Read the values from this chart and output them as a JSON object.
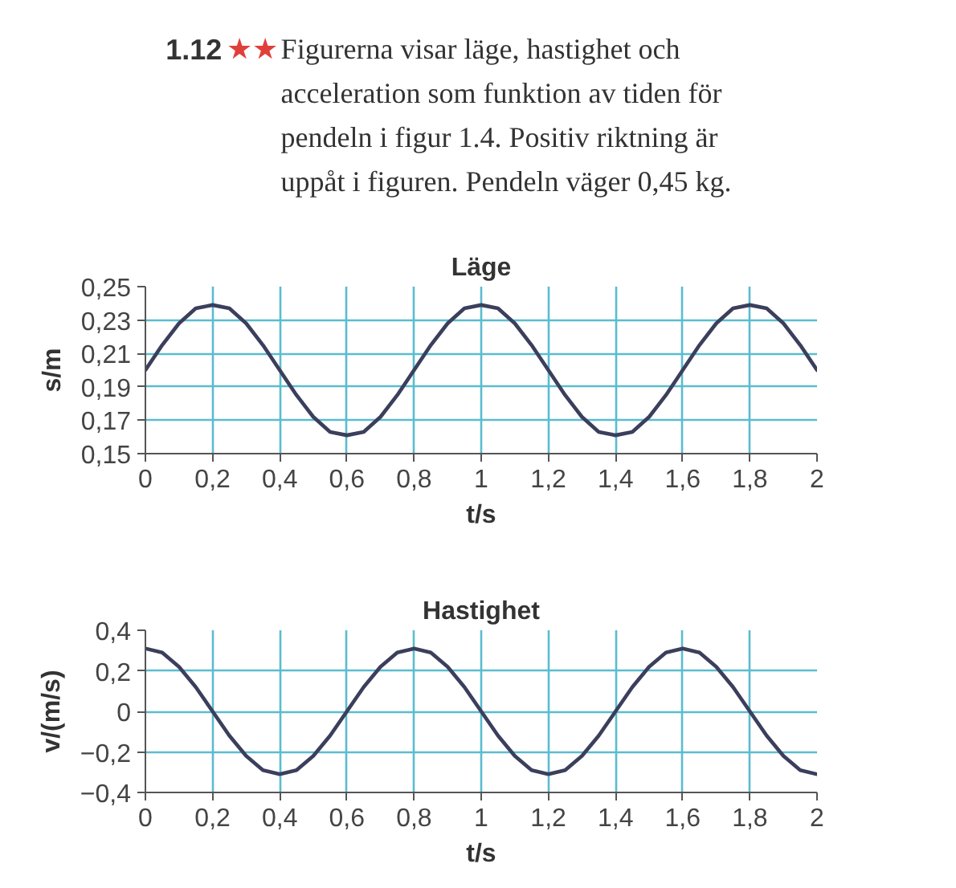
{
  "chart_data": [
    {
      "type": "other",
      "title": "1.12",
      "annotations": [
        "★★",
        "Figurerna visar läge, hastighet och acceleration som funktion av tiden för pendeln i figur 1.4. Positiv riktning är uppåt i figuren. Pendeln väger 0,45 kg."
      ]
    },
    {
      "type": "line",
      "title": "Läge",
      "xlabel": "t/s",
      "ylabel": "s/m",
      "color": "#3b3f5c",
      "grid": true,
      "x": [
        0,
        0.05,
        0.1,
        0.15,
        0.2,
        0.25,
        0.3,
        0.35,
        0.4,
        0.45,
        0.5,
        0.55,
        0.6,
        0.65,
        0.7,
        0.75,
        0.8,
        0.85,
        0.9,
        0.95,
        1.0,
        1.05,
        1.1,
        1.15,
        1.2,
        1.25,
        1.3,
        1.35,
        1.4,
        1.45,
        1.5,
        1.55,
        1.6,
        1.65,
        1.7,
        1.75,
        1.8,
        1.85,
        1.9,
        1.95,
        2.0
      ],
      "values": [
        0.2,
        0.215,
        0.228,
        0.237,
        0.239,
        0.237,
        0.228,
        0.215,
        0.2,
        0.185,
        0.172,
        0.163,
        0.161,
        0.163,
        0.172,
        0.185,
        0.2,
        0.215,
        0.228,
        0.237,
        0.239,
        0.237,
        0.228,
        0.215,
        0.2,
        0.185,
        0.172,
        0.163,
        0.161,
        0.163,
        0.172,
        0.185,
        0.2,
        0.215,
        0.228,
        0.237,
        0.239,
        0.237,
        0.228,
        0.215,
        0.2
      ],
      "xlim": [
        0,
        2
      ],
      "ylim": [
        0.15,
        0.25
      ],
      "xticks": [
        0,
        {
          "value": 0.2,
          "label": "0,2"
        },
        {
          "value": 0.4,
          "label": "0,4"
        },
        {
          "value": 0.6,
          "label": "0,6"
        },
        {
          "value": 0.8,
          "label": "0,8"
        },
        1,
        {
          "value": 1.2,
          "label": "1,2"
        },
        {
          "value": 1.4,
          "label": "1,4"
        },
        {
          "value": 1.6,
          "label": "1,6"
        },
        {
          "value": 1.8,
          "label": "1,8"
        },
        2
      ],
      "yticks": [
        {
          "value": 0.15,
          "label": "0,15"
        },
        {
          "value": 0.17,
          "label": "0,17"
        },
        {
          "value": 0.19,
          "label": "0,19"
        },
        {
          "value": 0.21,
          "label": "0,21"
        },
        {
          "value": 0.23,
          "label": "0,23"
        },
        {
          "value": 0.25,
          "label": "0,25"
        }
      ]
    },
    {
      "type": "line",
      "title": "Hastighet",
      "xlabel": "t/s",
      "ylabel": "v/(m/s)",
      "color": "#3b3f5c",
      "grid": true,
      "x": [
        0,
        0.05,
        0.1,
        0.15,
        0.2,
        0.25,
        0.3,
        0.35,
        0.4,
        0.45,
        0.5,
        0.55,
        0.6,
        0.65,
        0.7,
        0.75,
        0.8,
        0.85,
        0.9,
        0.95,
        1.0,
        1.05,
        1.1,
        1.15,
        1.2,
        1.25,
        1.3,
        1.35,
        1.4,
        1.45,
        1.5,
        1.55,
        1.6,
        1.65,
        1.7,
        1.75,
        1.8,
        1.85,
        1.9,
        1.95,
        2.0
      ],
      "values": [
        0.31,
        0.29,
        0.22,
        0.12,
        0.0,
        -0.12,
        -0.22,
        -0.29,
        -0.31,
        -0.29,
        -0.22,
        -0.12,
        0.0,
        0.12,
        0.22,
        0.29,
        0.31,
        0.29,
        0.22,
        0.12,
        0.0,
        -0.12,
        -0.22,
        -0.29,
        -0.31,
        -0.29,
        -0.22,
        -0.12,
        0.0,
        0.12,
        0.22,
        0.29,
        0.31,
        0.29,
        0.22,
        0.12,
        0.0,
        -0.12,
        -0.22,
        -0.29,
        -0.31
      ],
      "xlim": [
        0,
        2
      ],
      "ylim": [
        -0.4,
        0.4
      ],
      "xticks": [
        0,
        {
          "value": 0.2,
          "label": "0,2"
        },
        {
          "value": 0.4,
          "label": "0,4"
        },
        {
          "value": 0.6,
          "label": "0,6"
        },
        {
          "value": 0.8,
          "label": "0,8"
        },
        1,
        {
          "value": 1.2,
          "label": "1,2"
        },
        {
          "value": 1.4,
          "label": "1,4"
        },
        {
          "value": 1.6,
          "label": "1,6"
        },
        {
          "value": 1.8,
          "label": "1,8"
        },
        2
      ],
      "yticks": [
        {
          "value": -0.4,
          "label": "−0,4"
        },
        {
          "value": -0.2,
          "label": "−0,2"
        },
        0,
        {
          "value": 0.2,
          "label": "0,2"
        },
        {
          "value": 0.4,
          "label": "0,4"
        }
      ]
    }
  ]
}
